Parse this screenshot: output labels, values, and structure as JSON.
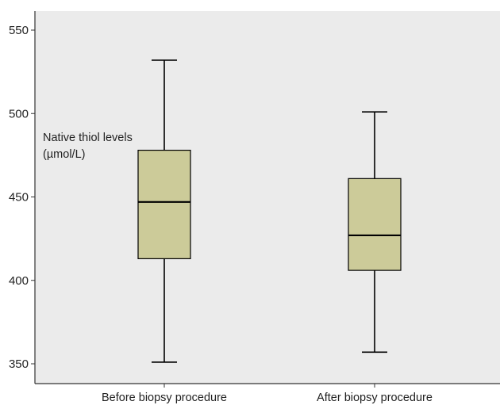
{
  "chart_data": {
    "type": "boxplot",
    "title": "",
    "xlabel": "",
    "ylabel": [
      "Native thiol levels",
      "(µmol/L)"
    ],
    "ylim": [
      340,
      560
    ],
    "yticks": [
      350,
      400,
      450,
      500,
      550
    ],
    "grid": false,
    "categories": [
      "Before biopsy procedure",
      "After biopsy procedure"
    ],
    "boxes": [
      {
        "category": "Before biopsy procedure",
        "min": 351,
        "q1": 413,
        "median": 447,
        "q3": 478,
        "max": 532
      },
      {
        "category": "After biopsy procedure",
        "min": 357,
        "q1": 406,
        "median": 427,
        "q3": 461,
        "max": 501
      }
    ]
  },
  "colors": {
    "plot_background": "#ebebeb",
    "box_fill": "#cccb99",
    "line": "#000000"
  }
}
